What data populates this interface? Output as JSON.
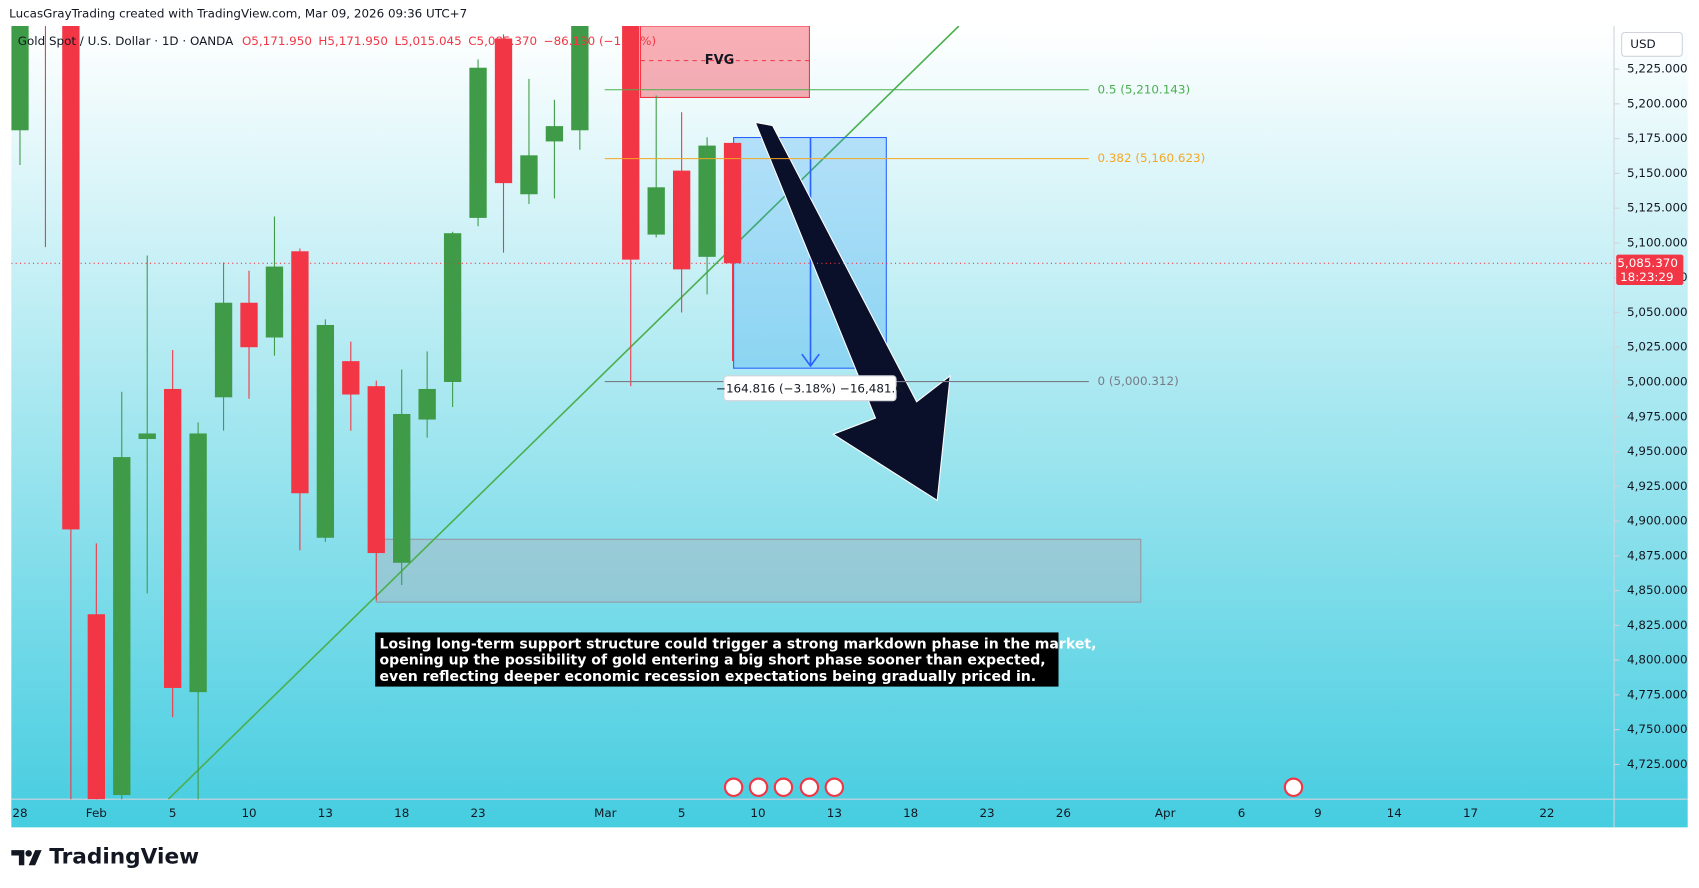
{
  "header": {
    "credit": "LucasGrayTrading created with TradingView.com, Mar 09, 2026 09:36 UTC+7",
    "logo": "TradingView"
  },
  "chart_data": {
    "type": "candlestick",
    "legend": {
      "symbol": "Gold Spot / U.S. Dollar · 1D · OANDA",
      "open": "O5,171.950",
      "high": "H5,171.950",
      "low": "L5,015.045",
      "close": "C5,085.370",
      "change": "−86.130 (−1.67%)"
    },
    "currency": "USD",
    "up_color": "#3f9b47",
    "down_color": "#f23645",
    "categories": [
      "28",
      null,
      null,
      "Feb",
      null,
      null,
      "5",
      null,
      null,
      "10",
      null,
      null,
      "13",
      null,
      null,
      "18",
      null,
      null,
      "23",
      null,
      null,
      null,
      null,
      "Mar",
      null,
      null,
      "5",
      null,
      null,
      "10",
      null,
      null,
      "13",
      null,
      null,
      "18",
      null,
      null,
      "23",
      null,
      null,
      "26",
      null,
      null,
      null,
      "Apr",
      null,
      null,
      "6",
      null,
      null,
      "9",
      null,
      null,
      "14",
      null,
      null,
      "17",
      null,
      null,
      "22"
    ],
    "open": [
      5181,
      5300,
      5265,
      4833,
      4703,
      4959,
      4995,
      4777,
      4989,
      5057,
      5032,
      5094,
      4888,
      5015,
      4997,
      4870,
      4973,
      5000,
      5118,
      5247,
      5135,
      5173,
      5181,
      null,
      5280,
      5106,
      5152,
      5090,
      5171.95,
      null,
      null,
      null,
      null,
      null,
      null,
      null,
      null,
      null,
      null,
      null,
      null,
      null,
      null,
      null,
      null,
      null,
      null,
      null,
      null,
      null,
      null,
      null,
      null,
      null,
      null,
      null,
      null,
      null,
      null,
      null,
      null
    ],
    "high": [
      5275,
      5320,
      5280,
      4884,
      4993,
      5091,
      5023,
      4971,
      5086,
      5080,
      5119,
      5096,
      5045,
      5029,
      5001,
      5009,
      5022,
      5108,
      5232,
      5250,
      5218,
      5203,
      5290,
      null,
      5300,
      5206,
      5194,
      5176,
      5171.95,
      null,
      null,
      null,
      null,
      null,
      null,
      null,
      null,
      null,
      null,
      null,
      null,
      null,
      null,
      null,
      null,
      null,
      null,
      null,
      null,
      null,
      null,
      null,
      null,
      null,
      null,
      null,
      null,
      null,
      null,
      null,
      null
    ],
    "low": [
      5156,
      5097,
      4690,
      4680,
      4695,
      4848,
      4759,
      4690,
      4965,
      4988,
      5019,
      4879,
      4885,
      4965,
      4843,
      4854,
      4960,
      4982,
      5112,
      5093,
      5128,
      5132,
      5167,
      null,
      4997,
      5104,
      5050,
      5063,
      5015.045,
      null,
      null,
      null,
      null,
      null,
      null,
      null,
      null,
      null,
      null,
      null,
      null,
      null,
      null,
      null,
      null,
      null,
      null,
      null,
      null,
      null,
      null,
      null,
      null,
      null,
      null,
      null,
      null,
      null,
      null,
      null,
      null
    ],
    "close": [
      5262,
      5265,
      4894,
      4700,
      4946,
      4963,
      4780,
      4963,
      5057,
      5025,
      5083,
      4920,
      5041,
      4991,
      4877,
      4977,
      4995,
      5107,
      5226,
      5143,
      5163,
      5184,
      5270,
      null,
      5088,
      5140,
      5081,
      5170,
      5085.37,
      null,
      null,
      null,
      null,
      null,
      null,
      null,
      null,
      null,
      null,
      null,
      null,
      null,
      null,
      null,
      null,
      null,
      null,
      null,
      null,
      null,
      null,
      null,
      null,
      null,
      null,
      null,
      null,
      null,
      null,
      null,
      null
    ],
    "ylim": [
      4700,
      5256
    ],
    "yticks": [
      {
        "value": 4725,
        "label": "4,725.000"
      },
      {
        "value": 4750,
        "label": "4,750.000"
      },
      {
        "value": 4775,
        "label": "4,775.000"
      },
      {
        "value": 4800,
        "label": "4,800.000"
      },
      {
        "value": 4825,
        "label": "4,825.000"
      },
      {
        "value": 4850,
        "label": "4,850.000"
      },
      {
        "value": 4875,
        "label": "4,875.000"
      },
      {
        "value": 4900,
        "label": "4,900.000"
      },
      {
        "value": 4925,
        "label": "4,925.000"
      },
      {
        "value": 4950,
        "label": "4,950.000"
      },
      {
        "value": 4975,
        "label": "4,975.000"
      },
      {
        "value": 5000,
        "label": "5,000.000"
      },
      {
        "value": 5025,
        "label": "5,025.000"
      },
      {
        "value": 5050,
        "label": "5,050.000"
      },
      {
        "value": 5075,
        "label": "5,075.000"
      },
      {
        "value": 5100,
        "label": "5,100.000"
      },
      {
        "value": 5125,
        "label": "5,125.000"
      },
      {
        "value": 5150,
        "label": "5,150.000"
      },
      {
        "value": 5175,
        "label": "5,175.000"
      },
      {
        "value": 5200,
        "label": "5,200.000"
      },
      {
        "value": 5225,
        "label": "5,225.000"
      }
    ],
    "last_price_label": "5,085.370",
    "countdown": "18:23:29",
    "fib_levels": [
      {
        "value": 5210.143,
        "label": "0.5 (5,210.143)",
        "color": "#4caf50"
      },
      {
        "value": 5160.623,
        "label": "0.382 (5,160.623)",
        "color": "#f5a623"
      },
      {
        "value": 5000.312,
        "label": "0 (5,000.312)",
        "color": "#787b86"
      }
    ],
    "fvg_label": "FVG",
    "measure_label": "−164.816 (−3.18%) −16,481.6",
    "annotation": [
      "Losing long-term support structure could trigger a strong markdown phase in the market,",
      "opening up the possibility of gold entering a big short phase sooner than expected,",
      "even reflecting deeper economic recession expectations being gradually priced in."
    ]
  }
}
